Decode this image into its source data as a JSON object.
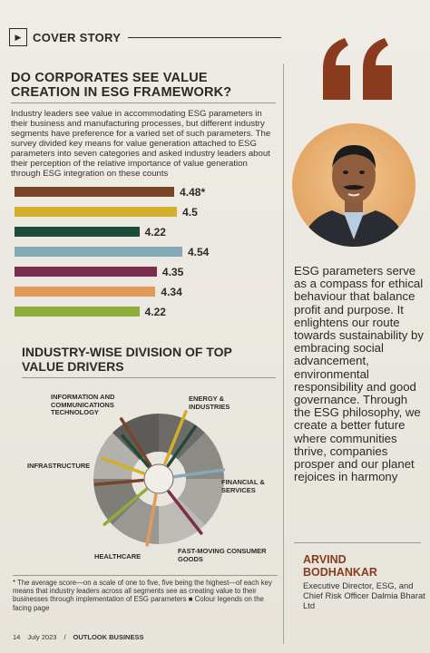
{
  "section": {
    "label": "COVER STORY"
  },
  "article": {
    "title": "DO CORPORATES SEE VALUE CREATION IN ESG FRAMEWORK?",
    "intro": "Industry leaders see value in accommodating ESG parameters in their business and manufacturing processes, but different industry segments have preference for a varied set of such parameters. The survey divided key means for value generation attached to ESG parameters into seven categories and asked industry leaders about their perception of the relative importance of value generation through ESG integration on these counts",
    "title2": "INDUSTRY-WISE DIVISION OF TOP VALUE DRIVERS",
    "footnote": "* The average score—on a scale of one to five, five being the highest—of each key means that industry leaders across all segments see as creating value to their businesses through implementation of ESG parameters  ■ Colour legends on the facing page"
  },
  "chart_data": [
    {
      "type": "bar",
      "orientation": "horizontal",
      "values": [
        4.48,
        4.5,
        4.22,
        4.54,
        4.35,
        4.34,
        4.22
      ],
      "value_labels": [
        "4.48*",
        "4.5",
        "4.22",
        "4.54",
        "4.35",
        "4.34",
        "4.22"
      ],
      "colors": [
        "#7a4428",
        "#d2b02a",
        "#1f4b3a",
        "#86a9b8",
        "#7a2e4e",
        "#e09a5a",
        "#8fad38"
      ],
      "xlim": [
        0,
        5
      ]
    },
    {
      "type": "pie",
      "style": "radial-donut",
      "categories": [
        "INFORMATION AND COMMUNICATIONS TECHNOLOGY",
        "ENERGY & INDUSTRIES",
        "FINANCIAL & SERVICES",
        "FAST-MOVING CONSUMER GOODS",
        "HEALTHCARE",
        "INFRASTRUCTURE"
      ],
      "spoke_colors": [
        "#7a4428",
        "#d2b02a",
        "#1f4b3a",
        "#86a9b8",
        "#7a2e4e",
        "#e09a5a",
        "#8fad38"
      ]
    }
  ],
  "quote": {
    "text": "ESG parameters serve as a compass for ethical behaviour that balance profit and purpose. It enlightens our route towards sustainability by embracing social advancement, environmental responsibility and good governance. Through the ESG philosophy, we create a better future where communities thrive, companies prosper and our planet rejoices in harmony",
    "author_first": "ARVIND",
    "author_last": "BODHANKAR",
    "role": "Executive Director, ESG, and Chief Risk Officer Dalmia Bharat Ltd"
  },
  "footer": {
    "page": "14",
    "date": "July 2023",
    "brand": "OUTLOOK BUSINESS"
  },
  "colors": {
    "accent": "#8a3b1e",
    "quote_mark": "#8a3b1e"
  }
}
